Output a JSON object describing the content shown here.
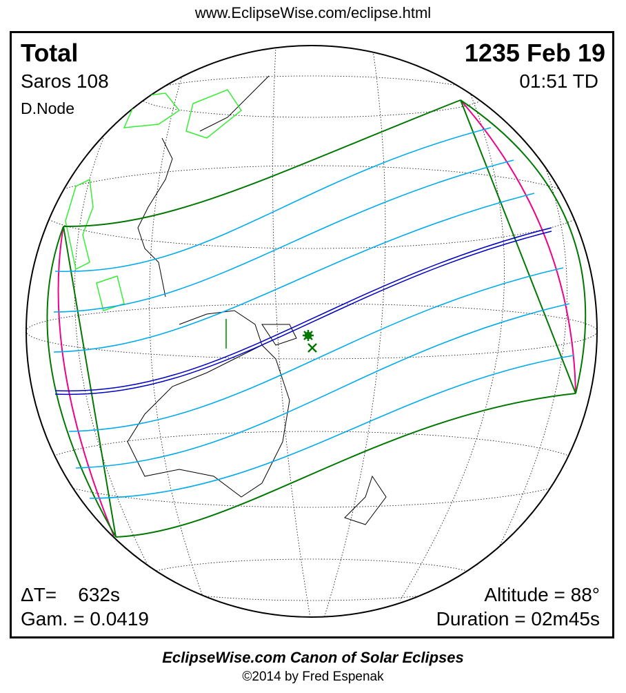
{
  "url": "www.EclipseWise.com/eclipse.html",
  "eclipse": {
    "type": "Total",
    "date": "1235 Feb 19",
    "saros": "Saros 108",
    "time": "01:51 TD",
    "node": "D.Node",
    "delta_t": "ΔT=    632s",
    "gamma": "Gam. = 0.0419",
    "altitude": "Altitude = 88°",
    "duration": "Duration = 02m45s"
  },
  "footer": {
    "title": "EclipseWise.com Canon of Solar Eclipses",
    "copyright": "©2014 by Fred Espenak"
  },
  "colors": {
    "central_line": "#0000c0",
    "umbral_limits_magnitude": "#00aaee",
    "penumbral_limits": "#007700",
    "rise_set_curves": "#ee0088",
    "sunrise_region_land": "#33ee33"
  }
}
